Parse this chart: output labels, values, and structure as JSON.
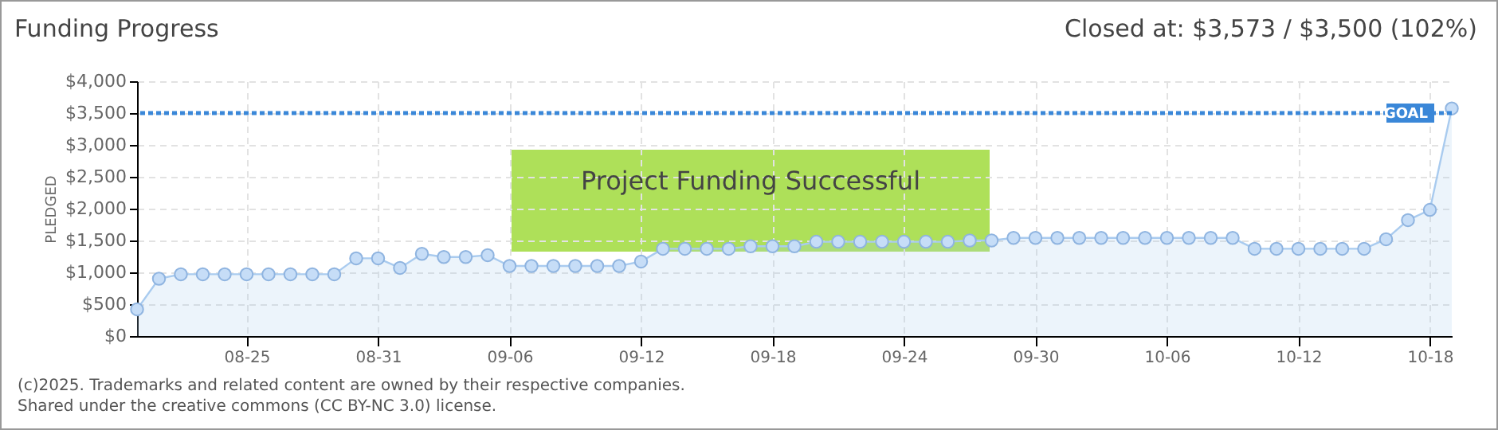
{
  "chart_data": {
    "type": "area",
    "title": "Funding Progress",
    "subtitle": "Closed at: $3,573 / $3,500 (102%)",
    "ylabel": "PLEDGED",
    "x": [
      "--08-20",
      "--08-21",
      "--08-22",
      "--08-23",
      "--08-24",
      "--08-25",
      "--08-26",
      "--08-27",
      "--08-28",
      "--08-29",
      "--08-30",
      "--08-31",
      "--09-01",
      "--09-02",
      "--09-03",
      "--09-04",
      "--09-05",
      "--09-06",
      "--09-07",
      "--09-08",
      "--09-09",
      "--09-10",
      "--09-11",
      "--09-12",
      "--09-13",
      "--09-14",
      "--09-15",
      "--09-16",
      "--09-17",
      "--09-18",
      "--09-19",
      "--09-20",
      "--09-21",
      "--09-22",
      "--09-23",
      "--09-24",
      "--09-25",
      "--09-26",
      "--09-27",
      "--09-28",
      "--09-29",
      "--09-30",
      "--10-01",
      "--10-02",
      "--10-03",
      "--10-04",
      "--10-05",
      "--10-06",
      "--10-07",
      "--10-08",
      "--10-09",
      "--10-10",
      "--10-11",
      "--10-12",
      "--10-13",
      "--10-14",
      "--10-15",
      "--10-16",
      "--10-17",
      "--10-18",
      "--10-19"
    ],
    "series": [
      {
        "color": "#a9cbef",
        "values": [
          420,
          900,
          970,
          970,
          970,
          970,
          970,
          970,
          970,
          970,
          1220,
          1220,
          1070,
          1290,
          1240,
          1240,
          1270,
          1100,
          1100,
          1100,
          1100,
          1100,
          1100,
          1170,
          1370,
          1370,
          1370,
          1370,
          1410,
          1410,
          1410,
          1480,
          1480,
          1480,
          1480,
          1480,
          1480,
          1480,
          1500,
          1500,
          1540,
          1540,
          1540,
          1540,
          1540,
          1540,
          1540,
          1540,
          1540,
          1540,
          1540,
          1370,
          1370,
          1370,
          1370,
          1370,
          1370,
          1520,
          1820,
          1980,
          3573
        ]
      }
    ],
    "xlim": [
      "--08-20",
      "--10-19"
    ],
    "xticks": [
      {
        "value": "--08-25",
        "label": "08-25"
      },
      {
        "value": "--08-31",
        "label": "08-31"
      },
      {
        "value": "--09-06",
        "label": "09-06"
      },
      {
        "value": "--09-12",
        "label": "09-12"
      },
      {
        "value": "--09-18",
        "label": "09-18"
      },
      {
        "value": "--09-24",
        "label": "09-24"
      },
      {
        "value": "--09-30",
        "label": "09-30"
      },
      {
        "value": "--10-06",
        "label": "10-06"
      },
      {
        "value": "--10-12",
        "label": "10-12"
      },
      {
        "value": "--10-18",
        "label": "10-18"
      }
    ],
    "ylim": [
      0,
      4000
    ],
    "yticks": [
      {
        "value": 0,
        "label": "$0"
      },
      {
        "value": 500,
        "label": "$500"
      },
      {
        "value": 1000,
        "label": "$1,000"
      },
      {
        "value": 1500,
        "label": "$1,500"
      },
      {
        "value": 2000,
        "label": "$2,000"
      },
      {
        "value": 2500,
        "label": "$2,500"
      },
      {
        "value": 3000,
        "label": "$3,000"
      },
      {
        "value": 3500,
        "label": "$3,500"
      },
      {
        "value": 4000,
        "label": "$4,000"
      }
    ],
    "ref_lines": [
      {
        "axis": "y",
        "value": 3500,
        "label": "GOAL",
        "color": "#3a87d8",
        "line_style": "dashed"
      }
    ],
    "annotations": [
      "Project Funding Successful",
      "(c)2025. Trademarks and related content are owned by their respective companies.",
      "Shared under the creative commons (CC BY-NC 3.0) license."
    ],
    "grid": true,
    "marker": "circle"
  }
}
